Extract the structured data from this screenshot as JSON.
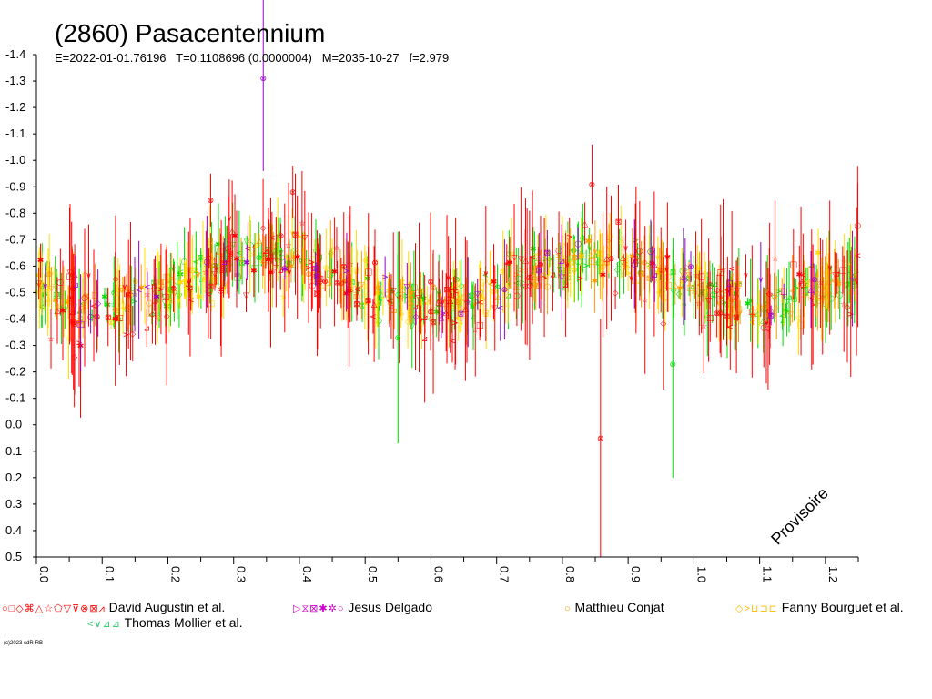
{
  "title": "(2860) Pasacentennium",
  "subtitle": "E=2022-01-01.76196   T=0.1108696 (0.0000004)   M=2035-10-27   f=2.979",
  "watermark": "Provisoire",
  "copyright": "(c)2023 cdR-RB",
  "colors": {
    "red": "#ff0000",
    "green": "#00dd00",
    "yellow": "#ffdd00",
    "orange": "#ff9900",
    "purple": "#9900cc",
    "blue": "#0000ff",
    "cyan": "#00cccc",
    "magenta": "#ff00ff"
  },
  "legend": [
    {
      "symbols": "○□◇⌘△☆⬠▽⊽⊗⊠⩘",
      "label": "David Augustin et al."
    },
    {
      "symbols": "▷⧖⊠✱✲○",
      "label": "Jesus Delgado"
    },
    {
      "symbols": "○",
      "label": "Matthieu Conjat"
    },
    {
      "symbols": "◇>⊔⊐⊏",
      "label": "Fanny Bourguet et al."
    },
    {
      "symbols": "<∨⊿⊿",
      "label": "Thomas Mollier et al."
    }
  ],
  "chart_data": {
    "type": "scatter",
    "title": "(2860) Pasacentennium",
    "xlabel": "",
    "ylabel": "",
    "xlim": [
      0.0,
      1.25
    ],
    "ylim": [
      0.5,
      -1.4
    ],
    "y_inverted": true,
    "x_ticks": [
      "0.0",
      "0.1",
      "0.2",
      "0.3",
      "0.4",
      "0.5",
      "0.6",
      "0.7",
      "0.8",
      "0.9",
      "1.0",
      "1.1",
      "1.2"
    ],
    "x_tick_values": [
      0.0,
      0.1,
      0.2,
      0.3,
      0.4,
      0.5,
      0.6,
      0.7,
      0.8,
      0.9,
      1.0,
      1.1,
      1.2
    ],
    "y_ticks": [
      "-1.4",
      "-1.3",
      "-1.2",
      "-1.1",
      "-1.0",
      "-0.9",
      "-0.8",
      "-0.7",
      "-0.6",
      "-0.5",
      "-0.4",
      "-0.3",
      "-0.2",
      "-0.1",
      "0.0",
      "0.1",
      "0.2",
      "0.3",
      "0.4",
      "0.5"
    ],
    "y_tick_values": [
      -1.4,
      -1.3,
      -1.2,
      -1.1,
      -1.0,
      -0.9,
      -0.8,
      -0.7,
      -0.6,
      -0.5,
      -0.4,
      -0.3,
      -0.2,
      -0.1,
      0.0,
      0.1,
      0.2,
      0.3,
      0.4,
      0.5
    ],
    "lightcurve": {
      "mean": -0.545,
      "amplitude": 0.09,
      "harmonics": 2
    },
    "outliers": [
      {
        "x": 0.345,
        "y": -1.31,
        "err": 0.35,
        "color": "purple"
      },
      {
        "x": 0.858,
        "y": 0.05,
        "err": 0.45,
        "color": "red"
      },
      {
        "x": 0.968,
        "y": -0.23,
        "err": 0.43,
        "color": "green"
      },
      {
        "x": 0.845,
        "y": -0.91,
        "err": 0.15,
        "color": "red"
      },
      {
        "x": 0.39,
        "y": -0.88,
        "err": 0.1,
        "color": "red"
      },
      {
        "x": 0.265,
        "y": -0.85,
        "err": 0.1,
        "color": "red"
      },
      {
        "x": 0.55,
        "y": -0.33,
        "err": 0.4,
        "color": "green"
      }
    ],
    "series": [
      {
        "name": "David Augustin et al.",
        "color": "red",
        "count": 230,
        "scatter": 0.12,
        "err": 0.18
      },
      {
        "name": "Jesus Delgado",
        "color": "purple",
        "count": 45,
        "scatter": 0.08,
        "err": 0.12
      },
      {
        "name": "Matthieu Conjat",
        "color": "orange",
        "count": 150,
        "scatter": 0.06,
        "err": 0.08
      },
      {
        "name": "Fanny Bourguet et al.",
        "color": "yellow",
        "count": 180,
        "scatter": 0.08,
        "err": 0.1
      },
      {
        "name": "Thomas Mollier et al.",
        "color": "green",
        "count": 240,
        "scatter": 0.07,
        "err": 0.1
      }
    ]
  }
}
